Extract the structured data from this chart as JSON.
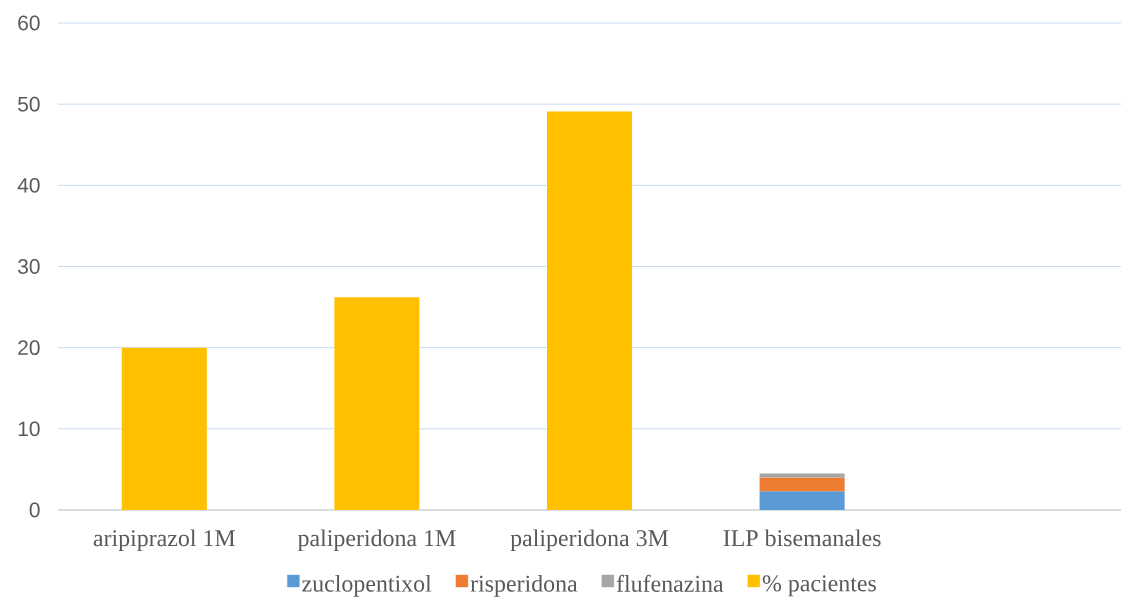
{
  "chart_data": {
    "type": "bar",
    "stacked": true,
    "categories": [
      "aripiprazol 1M",
      "paliperidona 1M",
      "paliperidona 3M",
      "ILP bisemanales",
      null
    ],
    "series": [
      {
        "name": "zuclopentixol",
        "color": "#5b9bd5",
        "values": [
          null,
          null,
          null,
          2.3,
          null
        ]
      },
      {
        "name": "risperidona",
        "color": "#ed7d31",
        "values": [
          null,
          null,
          null,
          1.7,
          null
        ]
      },
      {
        "name": "flufenazina",
        "color": "#a5a5a5",
        "values": [
          null,
          null,
          null,
          0.5,
          null
        ]
      },
      {
        "name": "% pacientes",
        "color": "#ffc000",
        "values": [
          20,
          26.2,
          49.1,
          null,
          null
        ]
      }
    ],
    "ylim": [
      0,
      60
    ],
    "yticks": [
      0,
      10,
      20,
      30,
      40,
      50,
      60
    ],
    "grid": "y",
    "legend": "bottom"
  }
}
